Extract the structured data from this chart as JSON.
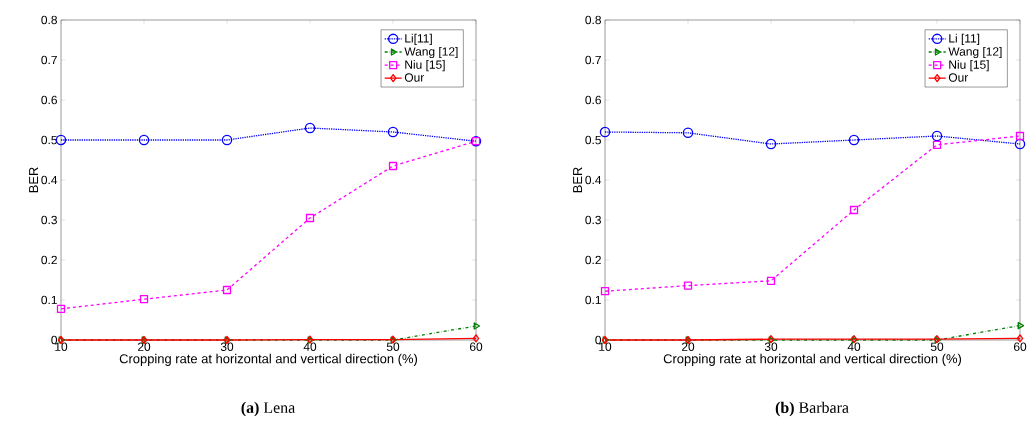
{
  "chart_data": [
    {
      "type": "line",
      "xlabel": "Cropping rate at horizontal and vertical direction (%)",
      "ylabel": "BER",
      "annotations": [
        "**(a)** Lena"
      ],
      "x": [
        10,
        20,
        30,
        40,
        50,
        60
      ],
      "xlim": [
        10,
        60
      ],
      "xticks": [
        10,
        20,
        30,
        40,
        50,
        60
      ],
      "ylim": [
        0,
        0.8
      ],
      "yticks": [
        0,
        0.1,
        0.2,
        0.3,
        0.4,
        0.5,
        0.6,
        0.7,
        0.8
      ],
      "legend": "top right",
      "grid": false,
      "series": [
        {
          "name": "Li[11]",
          "color": "#0000ff",
          "marker": "circle",
          "line_style": "dotted",
          "values": [
            0.5,
            0.5,
            0.5,
            0.53,
            0.52,
            0.497
          ]
        },
        {
          "name": "Wang [12]",
          "color": "#008000",
          "marker": "triangle",
          "line_style": "dashdot",
          "values": [
            0,
            0,
            0,
            0,
            0,
            0.035
          ]
        },
        {
          "name": "Niu [15]",
          "color": "#ff00ff",
          "marker": "square",
          "line_style": "dashed",
          "values": [
            0.078,
            0.102,
            0.125,
            0.305,
            0.435,
            0.497
          ]
        },
        {
          "name": "Our",
          "color": "#ff0000",
          "marker": "diamond",
          "line_style": "solid",
          "values": [
            0,
            0,
            0,
            0.001,
            0.001,
            0.004
          ]
        }
      ]
    },
    {
      "type": "line",
      "xlabel": "Cropping rate at horizontal and vertical direction (%)",
      "ylabel": "BER",
      "annotations": [
        "**(b)** Barbara"
      ],
      "x": [
        10,
        20,
        30,
        40,
        50,
        60
      ],
      "xlim": [
        10,
        60
      ],
      "xticks": [
        10,
        20,
        30,
        40,
        50,
        60
      ],
      "ylim": [
        0,
        0.8
      ],
      "yticks": [
        0,
        0.1,
        0.2,
        0.3,
        0.4,
        0.5,
        0.6,
        0.7,
        0.8
      ],
      "legend": "top right",
      "grid": false,
      "series": [
        {
          "name": "Li [11]",
          "color": "#0000ff",
          "marker": "circle",
          "line_style": "dotted",
          "values": [
            0.52,
            0.518,
            0.49,
            0.5,
            0.51,
            0.49
          ]
        },
        {
          "name": "Wang [12]",
          "color": "#008000",
          "marker": "triangle",
          "line_style": "dashdot",
          "values": [
            0,
            0,
            0,
            0,
            0,
            0.036
          ]
        },
        {
          "name": "Niu [15]",
          "color": "#ff00ff",
          "marker": "square",
          "line_style": "dashed",
          "values": [
            0.122,
            0.136,
            0.148,
            0.325,
            0.488,
            0.51
          ]
        },
        {
          "name": "Our",
          "color": "#ff0000",
          "marker": "diamond",
          "line_style": "solid",
          "values": [
            0,
            0,
            0.002,
            0.002,
            0.002,
            0.004
          ]
        }
      ]
    }
  ]
}
